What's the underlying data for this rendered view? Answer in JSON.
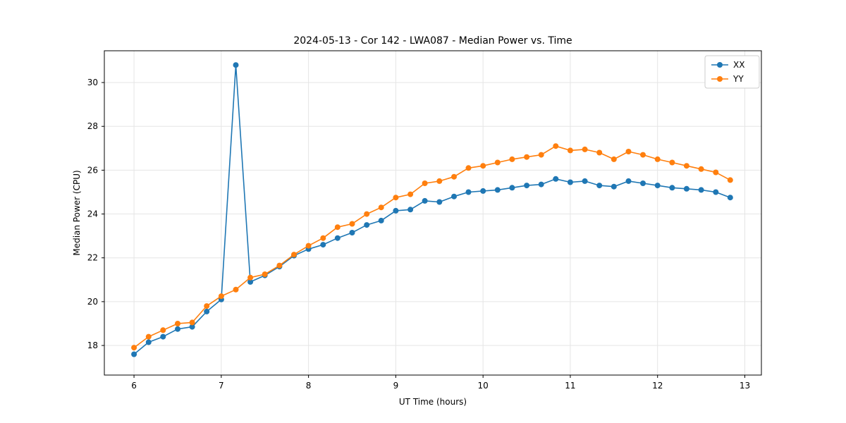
{
  "figure": {
    "title": "2024-05-13 - Cor 142 - LWA087 - Median Power vs. Time",
    "xlabel": "UT Time (hours)",
    "ylabel": "Median Power (CPU)"
  },
  "chart_data": {
    "type": "line",
    "title": "2024-05-13 - Cor 142 - LWA087 - Median Power vs. Time",
    "xlabel": "UT Time (hours)",
    "ylabel": "Median Power (CPU)",
    "grid": true,
    "legend_position": "upper right",
    "xlim": [
      5.66,
      13.19
    ],
    "ylim": [
      16.65,
      31.45
    ],
    "x_ticks": [
      6,
      7,
      8,
      9,
      10,
      11,
      12,
      13
    ],
    "y_ticks": [
      18,
      20,
      22,
      24,
      26,
      28,
      30
    ],
    "x": [
      6.0,
      6.167,
      6.333,
      6.5,
      6.667,
      6.833,
      7.0,
      7.167,
      7.333,
      7.5,
      7.667,
      7.833,
      8.0,
      8.167,
      8.333,
      8.5,
      8.667,
      8.833,
      9.0,
      9.167,
      9.333,
      9.5,
      9.667,
      9.833,
      10.0,
      10.167,
      10.333,
      10.5,
      10.667,
      10.833,
      11.0,
      11.167,
      11.333,
      11.5,
      11.667,
      11.833,
      12.0,
      12.167,
      12.333,
      12.5,
      12.667,
      12.833
    ],
    "series": [
      {
        "name": "XX",
        "color": "#1f77b4",
        "values": [
          17.6,
          18.15,
          18.4,
          18.75,
          18.85,
          19.55,
          20.1,
          30.8,
          20.9,
          21.2,
          21.6,
          22.1,
          22.4,
          22.6,
          22.9,
          23.15,
          23.5,
          23.7,
          24.15,
          24.2,
          24.6,
          24.55,
          24.8,
          25.0,
          25.05,
          25.1,
          25.2,
          25.3,
          25.35,
          25.6,
          25.45,
          25.5,
          25.3,
          25.25,
          25.5,
          25.4,
          25.3,
          25.2,
          25.15,
          25.1,
          25.0,
          24.75
        ]
      },
      {
        "name": "YY",
        "color": "#ff7f0e",
        "values": [
          17.9,
          18.4,
          18.7,
          19.0,
          19.05,
          19.8,
          20.25,
          20.55,
          21.1,
          21.25,
          21.65,
          22.15,
          22.55,
          22.9,
          23.4,
          23.55,
          24.0,
          24.3,
          24.75,
          24.9,
          25.4,
          25.5,
          25.7,
          26.1,
          26.2,
          26.35,
          26.5,
          26.6,
          26.7,
          27.1,
          26.9,
          26.95,
          26.8,
          26.5,
          26.85,
          26.7,
          26.5,
          26.35,
          26.2,
          26.05,
          25.9,
          25.55
        ]
      }
    ]
  }
}
